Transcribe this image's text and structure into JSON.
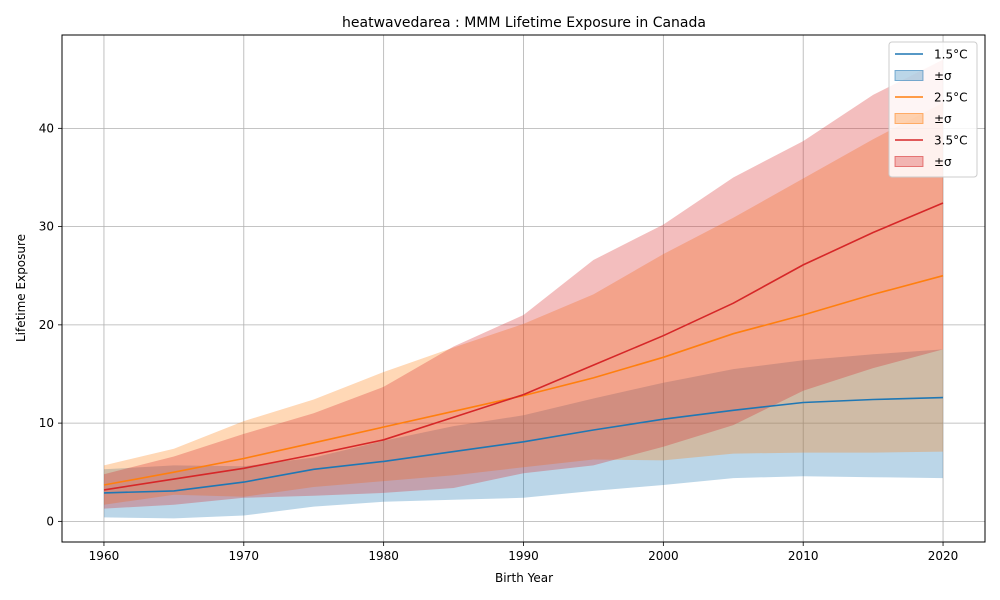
{
  "chart_data": {
    "type": "line",
    "title": "heatwavedarea : MMM Lifetime Exposure in Canada",
    "xlabel": "Birth Year",
    "ylabel": "Lifetime Exposure",
    "xlim": [
      1957,
      2023
    ],
    "ylim": [
      -2.1,
      49.5
    ],
    "xticks": [
      1960,
      1970,
      1980,
      1990,
      2000,
      2010,
      2020
    ],
    "yticks": [
      0,
      10,
      20,
      30,
      40
    ],
    "grid": true,
    "legend_position": "top-right",
    "x": [
      1960,
      1965,
      1970,
      1975,
      1980,
      1985,
      1990,
      1995,
      2000,
      2005,
      2010,
      2015,
      2020
    ],
    "series": [
      {
        "name": "1.5°C",
        "band_label": "±σ",
        "color": "#1f77b4",
        "values": [
          2.9,
          3.1,
          4.0,
          5.3,
          6.1,
          7.1,
          8.1,
          9.3,
          10.4,
          11.3,
          12.1,
          12.4,
          12.6
        ],
        "lower": [
          0.4,
          0.3,
          0.6,
          1.5,
          2.0,
          2.2,
          2.4,
          3.1,
          3.7,
          4.4,
          4.6,
          4.5,
          4.4
        ],
        "upper": [
          5.3,
          5.7,
          5.6,
          6.5,
          8.2,
          9.7,
          10.8,
          12.5,
          14.1,
          15.5,
          16.4,
          17.0,
          17.5
        ]
      },
      {
        "name": "2.5°C",
        "band_label": "±σ",
        "color": "#ff7f0e",
        "values": [
          3.7,
          5.0,
          6.4,
          8.0,
          9.6,
          11.2,
          12.8,
          14.6,
          16.7,
          19.1,
          21.0,
          23.1,
          25.0
        ],
        "lower": [
          1.7,
          2.7,
          2.5,
          3.5,
          4.1,
          4.7,
          5.5,
          6.3,
          6.2,
          6.9,
          7.0,
          7.0,
          7.1
        ],
        "upper": [
          5.7,
          7.4,
          10.2,
          12.4,
          15.2,
          17.7,
          20.1,
          23.1,
          27.2,
          30.9,
          34.9,
          38.9,
          42.6
        ]
      },
      {
        "name": "3.5°C",
        "band_label": "±σ",
        "color": "#d62728",
        "values": [
          3.2,
          4.3,
          5.4,
          6.8,
          8.3,
          10.6,
          12.9,
          15.9,
          18.9,
          22.2,
          26.1,
          29.4,
          32.4
        ],
        "lower": [
          1.3,
          1.7,
          2.4,
          2.6,
          2.9,
          3.4,
          4.9,
          5.7,
          7.6,
          9.8,
          13.3,
          15.6,
          17.5
        ],
        "upper": [
          4.8,
          6.6,
          8.9,
          11.0,
          13.7,
          17.8,
          21.0,
          26.6,
          30.2,
          35.0,
          38.7,
          43.4,
          47.0
        ]
      }
    ]
  }
}
